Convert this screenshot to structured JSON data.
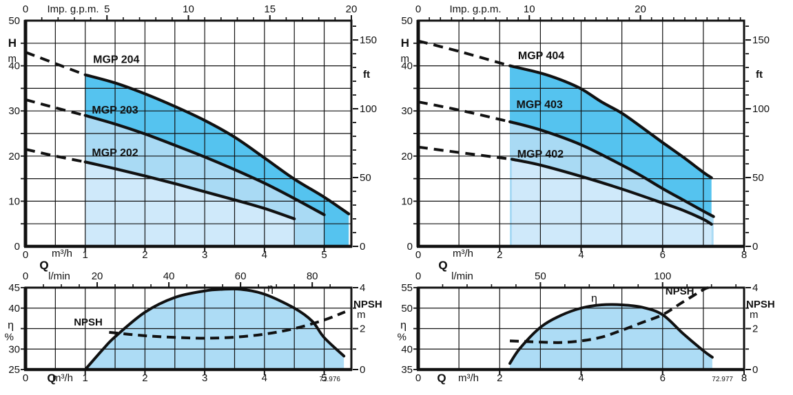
{
  "page": {
    "description": "Pump performance curves MGP 200 / MGP 400 series",
    "background": "#ffffff"
  },
  "colors": {
    "band_dark": "#55c3ef",
    "band_mid": "#a9daf4",
    "band_light": "#cfe9fa",
    "eta_fill": "#addcf5",
    "ink": "#111111"
  },
  "chart_data": [
    {
      "id": "head-curves-mgp-200",
      "type": "line",
      "position": "top-left",
      "x_bottom": {
        "zero": "0",
        "unit": "m³/h",
        "q_label": "Q",
        "ticks": [
          1,
          2,
          3,
          4,
          5
        ],
        "max": 5.455,
        "grid_step": 0.5
      },
      "x_top": {
        "title": "Imp. g.p.m.",
        "labels": [
          0,
          5,
          10,
          15,
          20
        ],
        "gpm_per_m3h": 3.6664,
        "minor_step": 1,
        "title_center_offset": 69
      },
      "y_left": {
        "title": "H",
        "unit": "m",
        "min": 0,
        "max": 50,
        "labels": [
          50,
          40,
          30,
          20,
          10,
          0
        ],
        "grid_step": 5
      },
      "y_right": {
        "unit": "ft",
        "labels": [
          150,
          100,
          50,
          0
        ],
        "ft_per_m": 3.2808,
        "minor_step": 10
      },
      "series": [
        {
          "name": "MGP 204",
          "band": "band_dark",
          "label_at": [
            1.52,
            41.4
          ],
          "dashed": [
            [
              0,
              43
            ],
            [
              0.5,
              40.5
            ],
            [
              1,
              38
            ]
          ],
          "solid": [
            [
              1,
              38
            ],
            [
              1.5,
              36.2
            ],
            [
              2,
              33.8
            ],
            [
              2.5,
              31
            ],
            [
              3,
              27.9
            ],
            [
              3.5,
              24.2
            ],
            [
              4,
              19.6
            ],
            [
              4.5,
              14.9
            ],
            [
              5,
              10.9
            ],
            [
              5.41,
              7.2
            ]
          ]
        },
        {
          "name": "MGP 203",
          "band": "band_mid",
          "label_at": [
            1.5,
            30.2
          ],
          "dashed": [
            [
              0,
              32.5
            ],
            [
              0.5,
              30.7
            ],
            [
              1,
              29
            ]
          ],
          "solid": [
            [
              1,
              29
            ],
            [
              1.5,
              27.1
            ],
            [
              2,
              24.9
            ],
            [
              2.5,
              22.4
            ],
            [
              3,
              19.8
            ],
            [
              3.5,
              17
            ],
            [
              4,
              14
            ],
            [
              4.5,
              10.6
            ],
            [
              5,
              7
            ]
          ]
        },
        {
          "name": "MGP 202",
          "band": "band_light",
          "label_at": [
            1.5,
            20.7
          ],
          "dashed": [
            [
              0,
              21.5
            ],
            [
              0.5,
              20
            ],
            [
              1,
              18.7
            ]
          ],
          "solid": [
            [
              1,
              18.7
            ],
            [
              1.5,
              17.2
            ],
            [
              2,
              15.6
            ],
            [
              2.5,
              13.9
            ],
            [
              3,
              12.1
            ],
            [
              3.5,
              10.3
            ],
            [
              4,
              8.4
            ],
            [
              4.5,
              6.1
            ]
          ]
        }
      ]
    },
    {
      "id": "head-curves-mgp-400",
      "type": "line",
      "position": "top-right",
      "x_bottom": {
        "zero": "0",
        "unit": "m³/h",
        "q_label": "Q",
        "ticks": [
          2,
          4,
          6,
          8
        ],
        "max": 8,
        "grid_step": 1
      },
      "x_top": {
        "title": "Imp. g.p.m.",
        "labels": [
          0,
          10,
          20
        ],
        "gpm_per_m3h": 3.6664,
        "minor_step": 1,
        "title_center_offset": 83
      },
      "y_left": {
        "title": "H",
        "unit": "m",
        "min": 0,
        "max": 50,
        "labels": [
          50,
          40,
          30,
          20,
          10,
          0
        ],
        "grid_step": 5
      },
      "y_right": {
        "unit": "ft",
        "labels": [
          150,
          100,
          50,
          0
        ],
        "ft_per_m": 3.2808,
        "minor_step": 10
      },
      "series": [
        {
          "name": "MGP 404",
          "band": "band_dark",
          "label_at": [
            3.02,
            42.2
          ],
          "dashed": [
            [
              0,
              45.5
            ],
            [
              1,
              43.2
            ],
            [
              2.25,
              40
            ]
          ],
          "solid": [
            [
              2.25,
              40
            ],
            [
              3,
              38.4
            ],
            [
              3.5,
              36.9
            ],
            [
              4,
              34.9
            ],
            [
              4.5,
              32
            ],
            [
              5,
              29.5
            ],
            [
              5.5,
              26.3
            ],
            [
              6,
              23
            ],
            [
              6.5,
              19.8
            ],
            [
              7,
              16.4
            ],
            [
              7.2,
              15.2
            ]
          ]
        },
        {
          "name": "MGP 403",
          "band": "band_mid",
          "label_at": [
            2.98,
            31.4
          ],
          "dashed": [
            [
              0,
              32
            ],
            [
              1,
              30.2
            ],
            [
              2.25,
              27.6
            ]
          ],
          "solid": [
            [
              2.25,
              27.6
            ],
            [
              3,
              25.8
            ],
            [
              4,
              22.5
            ],
            [
              5,
              18
            ],
            [
              5.5,
              15.5
            ],
            [
              6,
              12.8
            ],
            [
              6.5,
              10.3
            ],
            [
              7,
              7.8
            ],
            [
              7.25,
              6.6
            ]
          ]
        },
        {
          "name": "MGP 402",
          "band": "band_light",
          "label_at": [
            3.0,
            20.4
          ],
          "dashed": [
            [
              0,
              22
            ],
            [
              1,
              20.8
            ],
            [
              2.3,
              19.3
            ]
          ],
          "solid": [
            [
              2.3,
              19.3
            ],
            [
              3,
              18
            ],
            [
              4,
              15.5
            ],
            [
              5,
              12.7
            ],
            [
              6,
              9.6
            ],
            [
              6.5,
              8
            ],
            [
              7,
              6
            ],
            [
              7.2,
              4.9
            ]
          ]
        }
      ]
    },
    {
      "id": "efficiency-npsh-mgp-200",
      "type": "line",
      "position": "bottom-left",
      "x_top_lmin": {
        "zero": "0",
        "unit": "l/min",
        "labels": [
          20,
          40,
          60,
          80
        ],
        "lmin_per_m3h": 16.667,
        "minor_step": 5,
        "q_label": "Q"
      },
      "x_bottom": {
        "zero": "0",
        "q_label": "Q",
        "unit": "m³/h",
        "ticks": [
          1,
          2,
          3,
          4,
          5
        ],
        "max": 5.455,
        "grid_step": 0.5,
        "code": "72.976"
      },
      "y_left": {
        "title": "η",
        "unit": "%",
        "min": 25,
        "max": 45,
        "labels": [
          45,
          40,
          30,
          25
        ],
        "grid_step": 5
      },
      "y_right": {
        "title": "NPSH",
        "unit": "m",
        "min": 0,
        "max": 4,
        "labels": [
          4,
          2,
          0
        ],
        "minor_step": 1
      },
      "eta": {
        "label": "η",
        "label_at": [
          4.1,
          44.9
        ],
        "points": [
          [
            1,
            25
          ],
          [
            1.3,
            30
          ],
          [
            1.5,
            33
          ],
          [
            2,
            39
          ],
          [
            2.5,
            42.6
          ],
          [
            3,
            44.2
          ],
          [
            3.3,
            44.6
          ],
          [
            3.6,
            44.6
          ],
          [
            4,
            43.4
          ],
          [
            4.5,
            40
          ],
          [
            4.8,
            36.8
          ],
          [
            5,
            32.8
          ],
          [
            5.33,
            28.3
          ]
        ]
      },
      "npsh": {
        "label": "NPSH",
        "label_at": [
          1.05,
          2.32
        ],
        "points": [
          [
            1.4,
            1.82
          ],
          [
            2,
            1.65
          ],
          [
            2.5,
            1.57
          ],
          [
            3,
            1.53
          ],
          [
            3.5,
            1.58
          ],
          [
            4,
            1.73
          ],
          [
            4.5,
            2.0
          ],
          [
            5,
            2.42
          ],
          [
            5.35,
            2.82
          ]
        ]
      }
    },
    {
      "id": "efficiency-npsh-mgp-400",
      "type": "line",
      "position": "bottom-right",
      "x_top_lmin": {
        "zero": "0",
        "unit": "l/min",
        "labels": [
          50,
          100
        ],
        "lmin_per_m3h": 16.667,
        "minor_step": 10,
        "q_label": "Q"
      },
      "x_bottom": {
        "zero": "0",
        "q_label": "Q",
        "unit": "m³/h",
        "ticks": [
          2,
          4,
          6,
          8
        ],
        "max": 8,
        "grid_step": 1,
        "code": "72.977"
      },
      "y_left": {
        "title": "η",
        "unit": "%",
        "min": 35,
        "max": 55,
        "labels": [
          55,
          50,
          40,
          35
        ],
        "grid_step": 5
      },
      "y_right": {
        "title": "NPSH",
        "unit": "m",
        "min": 0,
        "max": 4,
        "labels": [
          4,
          2,
          0
        ],
        "minor_step": 1
      },
      "eta": {
        "label": "η",
        "label_at": [
          4.32,
          52.4
        ],
        "points": [
          [
            2.25,
            36.5
          ],
          [
            2.5,
            40.2
          ],
          [
            3,
            45.3
          ],
          [
            3.5,
            48.2
          ],
          [
            4,
            50
          ],
          [
            4.5,
            50.8
          ],
          [
            5,
            50.8
          ],
          [
            5.5,
            50.2
          ],
          [
            6,
            48.4
          ],
          [
            6.5,
            43.8
          ],
          [
            7,
            39.6
          ],
          [
            7.22,
            38
          ]
        ]
      },
      "npsh": {
        "label": "NPSH",
        "label_at": [
          6.42,
          3.83
        ],
        "points": [
          [
            2.25,
            1.4
          ],
          [
            3,
            1.34
          ],
          [
            3.5,
            1.32
          ],
          [
            4,
            1.4
          ],
          [
            4.5,
            1.58
          ],
          [
            5,
            1.92
          ],
          [
            5.5,
            2.3
          ],
          [
            6,
            2.68
          ],
          [
            6.5,
            3.3
          ],
          [
            7,
            3.9
          ],
          [
            7.12,
            4.0
          ]
        ]
      }
    }
  ]
}
